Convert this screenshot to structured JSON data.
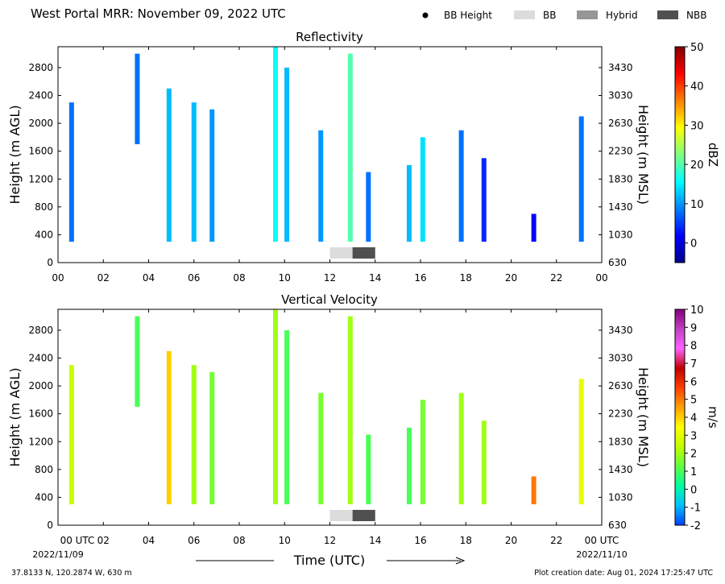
{
  "figure": {
    "title": "West Portal MRR:  November 09, 2022 UTC",
    "legend": [
      {
        "label": "BB Height",
        "marker": "dot",
        "color": "#000000"
      },
      {
        "label": "BB",
        "marker": "bar",
        "color": "#dcdcdc"
      },
      {
        "label": "Hybrid",
        "marker": "bar",
        "color": "#969696"
      },
      {
        "label": "NBB",
        "marker": "bar",
        "color": "#505050"
      }
    ],
    "xlabel": "Time (UTC)",
    "x_start_label": "00 UTC",
    "x_end_label": "00 UTC",
    "date_start": "2022/11/09",
    "date_end": "2022/11/10",
    "location": "37.8133 N, 120.2874 W, 630 m",
    "creation": "Plot creation date: Aug 01, 2024 17:25:47 UTC"
  },
  "chart_data": [
    {
      "type": "heatmap",
      "title": "Reflectivity",
      "ylabel": "Height (m AGL)",
      "ylabel_right": "Height (m MSL)",
      "xlim": [
        0,
        24
      ],
      "ylim": [
        0,
        3100
      ],
      "xticks": [
        "00",
        "02",
        "04",
        "06",
        "08",
        "10",
        "12",
        "14",
        "16",
        "18",
        "20",
        "22",
        "00"
      ],
      "yticks": [
        "0",
        "400",
        "800",
        "1200",
        "1600",
        "2000",
        "2400",
        "2800"
      ],
      "yticks_right": [
        "630",
        "1030",
        "1430",
        "1830",
        "2230",
        "2630",
        "3030",
        "3430"
      ],
      "colorbar": {
        "label": "dBZ",
        "min": -5,
        "max": 50,
        "ticks": [
          "0",
          "10",
          "20",
          "30",
          "40",
          "50"
        ],
        "colormap": [
          "#00008f",
          "#0000ff",
          "#0080ff",
          "#00ffff",
          "#80ff80",
          "#ffff00",
          "#ff8000",
          "#ff0000",
          "#800000"
        ]
      },
      "columns": [
        {
          "t": 0.6,
          "bottom": 300,
          "top": 2300,
          "value": 8
        },
        {
          "t": 3.5,
          "bottom": 1700,
          "top": 3000,
          "value": 8
        },
        {
          "t": 4.9,
          "bottom": 300,
          "top": 2500,
          "value": 12
        },
        {
          "t": 6.0,
          "bottom": 300,
          "top": 2300,
          "value": 12
        },
        {
          "t": 6.8,
          "bottom": 300,
          "top": 2200,
          "value": 10
        },
        {
          "t": 9.6,
          "bottom": 300,
          "top": 3100,
          "value": 16
        },
        {
          "t": 10.1,
          "bottom": 300,
          "top": 2800,
          "value": 12
        },
        {
          "t": 11.6,
          "bottom": 300,
          "top": 1900,
          "value": 10
        },
        {
          "t": 12.9,
          "bottom": 300,
          "top": 3000,
          "value": 20
        },
        {
          "t": 13.7,
          "bottom": 300,
          "top": 1300,
          "value": 8
        },
        {
          "t": 15.5,
          "bottom": 300,
          "top": 1400,
          "value": 12
        },
        {
          "t": 16.1,
          "bottom": 300,
          "top": 1800,
          "value": 14
        },
        {
          "t": 17.8,
          "bottom": 300,
          "top": 1900,
          "value": 8
        },
        {
          "t": 18.8,
          "bottom": 300,
          "top": 1500,
          "value": 4
        },
        {
          "t": 21.0,
          "bottom": 300,
          "top": 700,
          "value": 2
        },
        {
          "t": 23.1,
          "bottom": 300,
          "top": 2100,
          "value": 8
        }
      ],
      "bb_bars": [
        {
          "start": 12.0,
          "end": 13.0,
          "type": "BB"
        },
        {
          "start": 13.0,
          "end": 14.0,
          "type": "NBB"
        }
      ]
    },
    {
      "type": "heatmap",
      "title": "Vertical Velocity",
      "ylabel": "Height (m AGL)",
      "ylabel_right": "Height (m MSL)",
      "xlim": [
        0,
        24
      ],
      "ylim": [
        0,
        3100
      ],
      "xticks": [
        "00 UTC",
        "02",
        "04",
        "06",
        "08",
        "10",
        "12",
        "14",
        "16",
        "18",
        "20",
        "22",
        "00 UTC"
      ],
      "yticks": [
        "0",
        "400",
        "800",
        "1200",
        "1600",
        "2000",
        "2400",
        "2800"
      ],
      "yticks_right": [
        "630",
        "1030",
        "1430",
        "1830",
        "2230",
        "2630",
        "3030",
        "3430"
      ],
      "colorbar": {
        "label": "m/s",
        "min": -2,
        "max": 10,
        "ticks": [
          "-2",
          "-1",
          "0",
          "1",
          "2",
          "3",
          "4",
          "5",
          "6",
          "7",
          "8",
          "9",
          "10"
        ],
        "colormap": [
          "#0040ff",
          "#00c0ff",
          "#00ffa0",
          "#60ff40",
          "#c0ff00",
          "#ffff00",
          "#ffa000",
          "#ff4000",
          "#c00000",
          "#ff60ff",
          "#c040c0",
          "#800080"
        ]
      },
      "columns": [
        {
          "t": 0.6,
          "bottom": 300,
          "top": 2300,
          "value": 2.5
        },
        {
          "t": 3.5,
          "bottom": 1700,
          "top": 3000,
          "value": 1
        },
        {
          "t": 4.9,
          "bottom": 300,
          "top": 2500,
          "value": 4
        },
        {
          "t": 6.0,
          "bottom": 300,
          "top": 2300,
          "value": 2
        },
        {
          "t": 6.8,
          "bottom": 300,
          "top": 2200,
          "value": 1.5
        },
        {
          "t": 9.6,
          "bottom": 300,
          "top": 3100,
          "value": 2
        },
        {
          "t": 10.1,
          "bottom": 300,
          "top": 2800,
          "value": 1
        },
        {
          "t": 11.6,
          "bottom": 300,
          "top": 1900,
          "value": 1.5
        },
        {
          "t": 12.9,
          "bottom": 300,
          "top": 3000,
          "value": 2
        },
        {
          "t": 13.7,
          "bottom": 300,
          "top": 1300,
          "value": 1
        },
        {
          "t": 15.5,
          "bottom": 300,
          "top": 1400,
          "value": 1
        },
        {
          "t": 16.1,
          "bottom": 300,
          "top": 1800,
          "value": 1.5
        },
        {
          "t": 17.8,
          "bottom": 300,
          "top": 1900,
          "value": 2
        },
        {
          "t": 18.8,
          "bottom": 300,
          "top": 1500,
          "value": 2
        },
        {
          "t": 21.0,
          "bottom": 300,
          "top": 700,
          "value": 5
        },
        {
          "t": 23.1,
          "bottom": 300,
          "top": 2100,
          "value": 3
        }
      ],
      "bb_bars": [
        {
          "start": 12.0,
          "end": 13.0,
          "type": "BB"
        },
        {
          "start": 13.0,
          "end": 14.0,
          "type": "NBB"
        }
      ]
    }
  ]
}
